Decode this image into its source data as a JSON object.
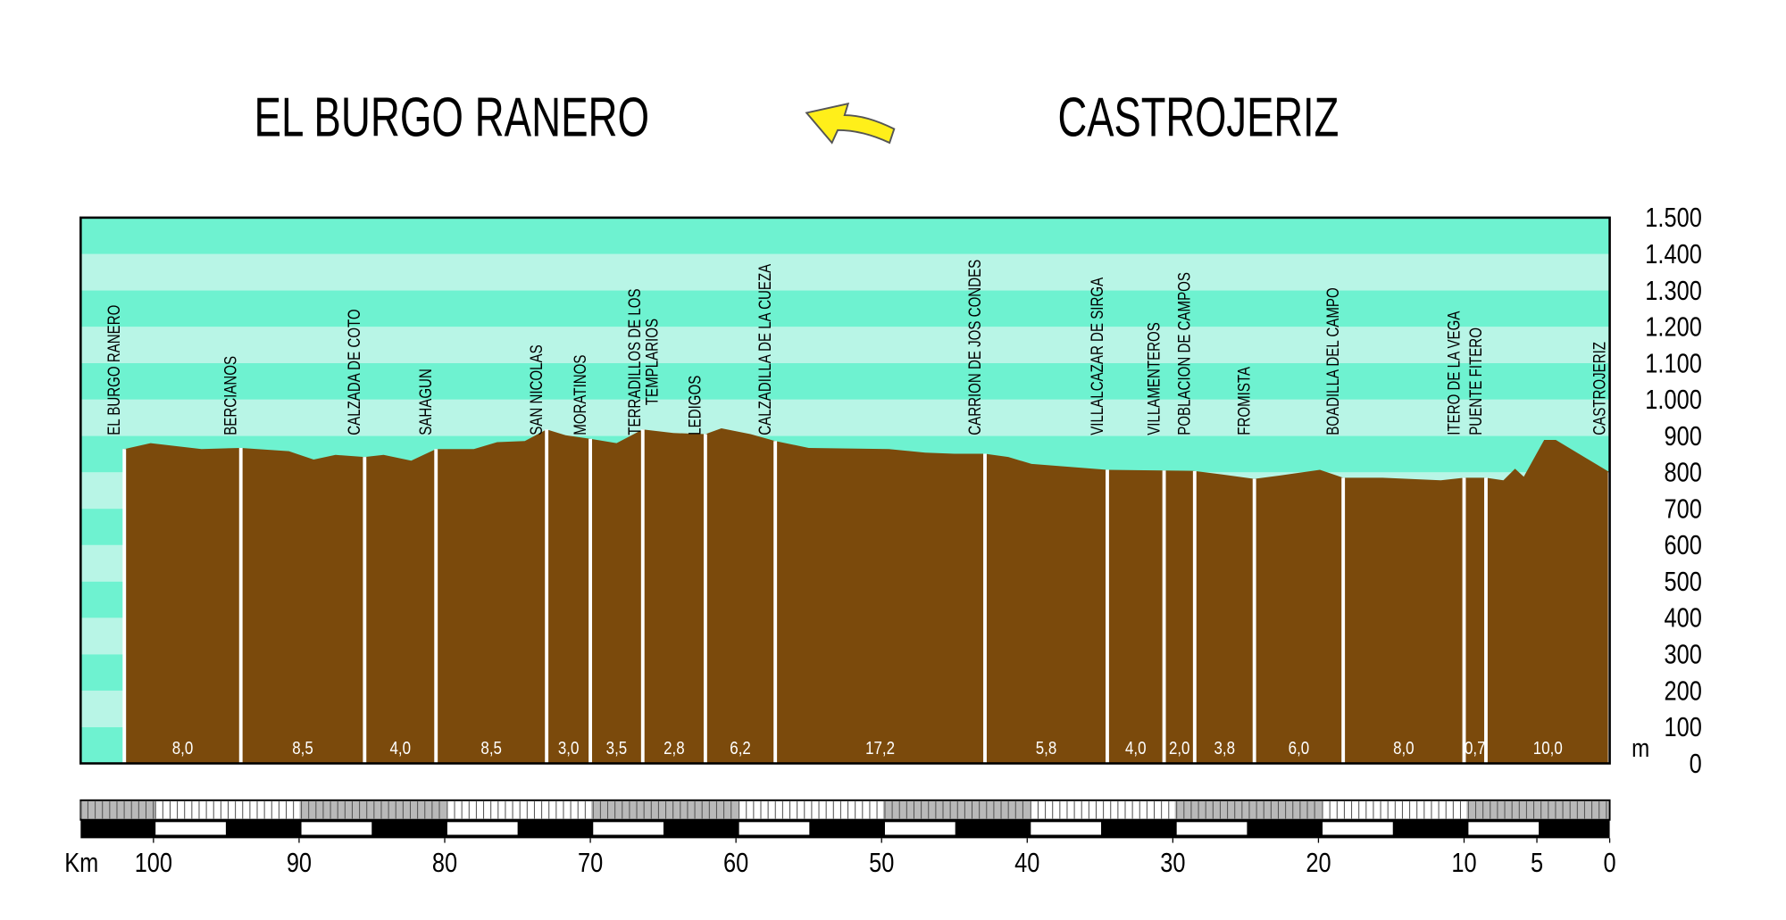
{
  "chart_data": {
    "type": "area",
    "start_label": "EL BURGO RANERO",
    "end_label": "CASTROJERIZ",
    "x_label": "Km",
    "y_label": "m",
    "color": "#7b4a0c",
    "band_colors": [
      "#6ef2d0",
      "#b8f5e6"
    ],
    "xlim": [
      105,
      0
    ],
    "xticks": [
      100,
      90,
      80,
      70,
      60,
      50,
      40,
      30,
      20,
      10,
      5,
      0
    ],
    "ylim": [
      0,
      1500
    ],
    "yticks": [
      0,
      100,
      200,
      300,
      400,
      500,
      600,
      700,
      800,
      900,
      {
        "value": 1000,
        "label": "1.000"
      },
      {
        "value": 1100,
        "label": "1.100"
      },
      {
        "value": 1200,
        "label": "1.200"
      },
      {
        "value": 1300,
        "label": "1.300"
      },
      {
        "value": 1400,
        "label": "1.400"
      },
      {
        "value": 1500,
        "label": "1.500"
      }
    ],
    "x": [
      102,
      100.2,
      96.7,
      94,
      90.7,
      89,
      87.5,
      85.5,
      84.2,
      82.3,
      80.6,
      78,
      76.4,
      74.5,
      73,
      71.7,
      70,
      68.2,
      66.4,
      64.3,
      62.1,
      61,
      59,
      57.3,
      55,
      49.5,
      47,
      45,
      42.9,
      41.3,
      39.7,
      34.5,
      28.6,
      26.6,
      24.4,
      22.7,
      19.9,
      18.3,
      15.6,
      11.6,
      10,
      8.5,
      7.3,
      6.5,
      5.9,
      4.5,
      3.7,
      0
    ],
    "values": [
      864,
      880,
      864,
      867,
      858,
      835,
      848,
      842,
      848,
      832,
      864,
      864,
      883,
      886,
      918,
      902,
      892,
      880,
      918,
      908,
      905,
      921,
      905,
      886,
      867,
      864,
      854,
      851,
      851,
      842,
      823,
      807,
      804,
      794,
      782,
      791,
      807,
      785,
      785,
      778,
      785,
      785,
      778,
      810,
      788,
      889,
      889,
      800
    ],
    "towns": [
      {
        "name": "EL BURGO RANERO",
        "km": 102
      },
      {
        "name": "BERCIANOS",
        "km": 94
      },
      {
        "name": "CALZADA DE COTO",
        "km": 85.5
      },
      {
        "name": "SAHAGUN",
        "km": 80.6
      },
      {
        "name": "SAN NICOLAS",
        "km": 73
      },
      {
        "name": "MORATINOS",
        "km": 70
      },
      {
        "name": [
          "TERRADILLOS DE LOS",
          "TEMPLARIOS"
        ],
        "km": 66.4
      },
      {
        "name": "LEDIGOS",
        "km": 62.1
      },
      {
        "name": "CALZADILLA DE LA CUEZA",
        "km": 57.3
      },
      {
        "name": "CARRION DE JOS CONDES",
        "km": 42.9
      },
      {
        "name": "VILLALCAZAR DE SIRGA",
        "km": 34.5
      },
      {
        "name": "VILLAMENTEROS",
        "km": 30.6
      },
      {
        "name": "POBLACION DE CAMPOS",
        "km": 28.5
      },
      {
        "name": "FROMISTA",
        "km": 24.4
      },
      {
        "name": "BOADILLA DEL CAMPO",
        "km": 18.3
      },
      {
        "name": "ITERO DE LA VEGA",
        "km": 10
      },
      {
        "name": "PUENTE FITERO",
        "km": 8.5
      },
      {
        "name": "CASTROJERIZ",
        "km": 0
      }
    ],
    "segments": {
      "values": [
        8,
        8.5,
        4,
        8.5,
        3,
        3.5,
        2.8,
        6.2,
        17.2,
        5.8,
        4,
        2,
        3.8,
        6,
        8,
        0.7,
        10
      ],
      "value_labels": [
        "8,0",
        "8,5",
        "4,0",
        "8,5",
        "3,0",
        "3,5",
        "2,8",
        "6,2",
        "17,2",
        "5,8",
        "4,0",
        "2,0",
        "3,8",
        "6,0",
        "8,0",
        "0,7",
        "10,0"
      ]
    }
  }
}
